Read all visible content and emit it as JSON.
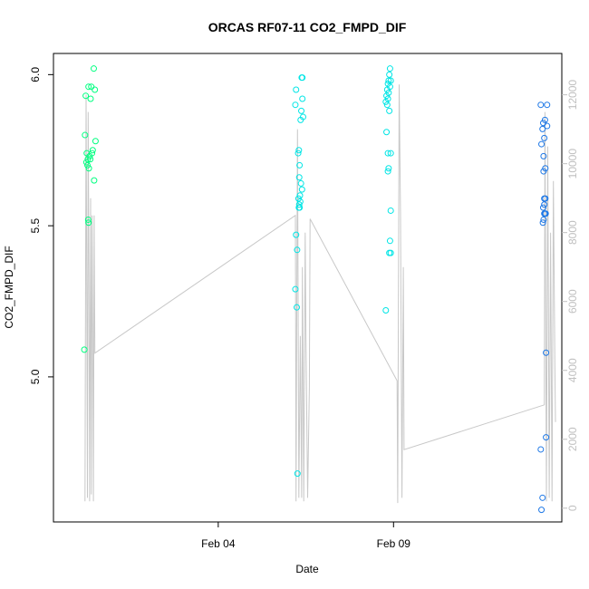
{
  "chart_data": {
    "type": "scatter",
    "title": "ORCAS RF07-11 CO2_FMPD_DIF",
    "xlabel": "Date",
    "ylabel": "CO2_FMPD_DIF",
    "x_ticks": [
      {
        "label": "Feb 04",
        "day": 4.0
      },
      {
        "label": "Feb 09",
        "day": 9.0
      }
    ],
    "xlim_days": [
      -0.7,
      13.8
    ],
    "ylim": [
      4.52,
      6.07
    ],
    "y_ticks": [
      5.0,
      5.5,
      6.0
    ],
    "y_tick_labels": [
      "5.0",
      "5.5",
      "6.0"
    ],
    "y2_ticks": [
      0,
      2000,
      4000,
      6000,
      8000,
      10000,
      12000
    ],
    "y2_tick_labels": [
      "0",
      "2000",
      "4000",
      "6000",
      "8000",
      "10000",
      "12000"
    ],
    "y2lim": [
      -400,
      13200
    ],
    "altitude_line_color": "#c8c8c8",
    "color_scale": [
      "#00ff80",
      "#00e5e5",
      "#1e78e6"
    ],
    "altitude_trace": [
      [
        0.2,
        200
      ],
      [
        0.23,
        12000
      ],
      [
        0.25,
        6000
      ],
      [
        0.27,
        300
      ],
      [
        0.29,
        11500
      ],
      [
        0.31,
        7000
      ],
      [
        0.33,
        200
      ],
      [
        0.36,
        9000
      ],
      [
        0.38,
        400
      ],
      [
        0.4,
        8500
      ],
      [
        0.42,
        5200
      ],
      [
        0.44,
        200
      ],
      [
        0.46,
        8500
      ],
      [
        0.48,
        4500
      ],
      [
        6.2,
        8500
      ],
      [
        6.22,
        200
      ],
      [
        6.26,
        11000
      ],
      [
        6.3,
        300
      ],
      [
        6.34,
        5000
      ],
      [
        6.38,
        300
      ],
      [
        6.4,
        7000
      ],
      [
        6.44,
        200
      ],
      [
        6.48,
        8000
      ],
      [
        6.5,
        5000
      ],
      [
        6.55,
        300
      ],
      [
        6.6,
        3500
      ],
      [
        6.62,
        8400
      ],
      [
        9.1,
        3700
      ],
      [
        9.12,
        150
      ],
      [
        9.16,
        12300
      ],
      [
        9.2,
        8500
      ],
      [
        9.24,
        300
      ],
      [
        9.28,
        7000
      ],
      [
        9.3,
        1700
      ],
      [
        13.3,
        3000
      ],
      [
        13.32,
        11500
      ],
      [
        13.36,
        200
      ],
      [
        13.4,
        10500
      ],
      [
        13.44,
        300
      ],
      [
        13.48,
        8000
      ],
      [
        13.52,
        200
      ],
      [
        13.56,
        9500
      ],
      [
        13.6,
        4200
      ],
      [
        13.62,
        2500
      ]
    ],
    "points": [
      {
        "day": 0.45,
        "v": 6.02,
        "c": 0
      },
      {
        "day": 0.3,
        "v": 5.96,
        "c": 0
      },
      {
        "day": 0.38,
        "v": 5.96,
        "c": 0
      },
      {
        "day": 0.48,
        "v": 5.95,
        "c": 0
      },
      {
        "day": 0.22,
        "v": 5.93,
        "c": 0
      },
      {
        "day": 0.36,
        "v": 5.92,
        "c": 0
      },
      {
        "day": 0.2,
        "v": 5.8,
        "c": 0
      },
      {
        "day": 0.5,
        "v": 5.78,
        "c": 0
      },
      {
        "day": 0.42,
        "v": 5.75,
        "c": 0
      },
      {
        "day": 0.4,
        "v": 5.74,
        "c": 0
      },
      {
        "day": 0.25,
        "v": 5.74,
        "c": 0
      },
      {
        "day": 0.33,
        "v": 5.73,
        "c": 0
      },
      {
        "day": 0.28,
        "v": 5.72,
        "c": 0
      },
      {
        "day": 0.35,
        "v": 5.72,
        "c": 0
      },
      {
        "day": 0.24,
        "v": 5.71,
        "c": 0
      },
      {
        "day": 0.27,
        "v": 5.7,
        "c": 0
      },
      {
        "day": 0.31,
        "v": 5.69,
        "c": 0
      },
      {
        "day": 0.46,
        "v": 5.65,
        "c": 0
      },
      {
        "day": 0.29,
        "v": 5.52,
        "c": 0
      },
      {
        "day": 0.3,
        "v": 5.51,
        "c": 0
      },
      {
        "day": 0.18,
        "v": 5.09,
        "c": 0
      },
      {
        "day": 6.38,
        "v": 5.99,
        "c": 1
      },
      {
        "day": 6.4,
        "v": 5.99,
        "c": 1
      },
      {
        "day": 6.22,
        "v": 5.95,
        "c": 1
      },
      {
        "day": 6.4,
        "v": 5.92,
        "c": 1
      },
      {
        "day": 6.2,
        "v": 5.9,
        "c": 1
      },
      {
        "day": 6.37,
        "v": 5.88,
        "c": 1
      },
      {
        "day": 6.42,
        "v": 5.86,
        "c": 1
      },
      {
        "day": 6.35,
        "v": 5.85,
        "c": 1
      },
      {
        "day": 6.3,
        "v": 5.75,
        "c": 1
      },
      {
        "day": 6.28,
        "v": 5.74,
        "c": 1
      },
      {
        "day": 6.32,
        "v": 5.7,
        "c": 1
      },
      {
        "day": 6.31,
        "v": 5.66,
        "c": 1
      },
      {
        "day": 6.36,
        "v": 5.64,
        "c": 1
      },
      {
        "day": 6.39,
        "v": 5.62,
        "c": 1
      },
      {
        "day": 6.33,
        "v": 5.6,
        "c": 1
      },
      {
        "day": 6.29,
        "v": 5.59,
        "c": 1
      },
      {
        "day": 6.34,
        "v": 5.58,
        "c": 1
      },
      {
        "day": 6.31,
        "v": 5.57,
        "c": 1
      },
      {
        "day": 6.3,
        "v": 5.56,
        "c": 1
      },
      {
        "day": 6.32,
        "v": 5.56,
        "c": 1
      },
      {
        "day": 6.22,
        "v": 5.47,
        "c": 1
      },
      {
        "day": 6.25,
        "v": 5.42,
        "c": 1
      },
      {
        "day": 6.2,
        "v": 5.29,
        "c": 1
      },
      {
        "day": 6.24,
        "v": 5.23,
        "c": 1
      },
      {
        "day": 6.26,
        "v": 4.68,
        "c": 1
      },
      {
        "day": 8.9,
        "v": 6.02,
        "c": 1
      },
      {
        "day": 8.88,
        "v": 6.0,
        "c": 1
      },
      {
        "day": 8.86,
        "v": 5.98,
        "c": 1
      },
      {
        "day": 8.92,
        "v": 5.98,
        "c": 1
      },
      {
        "day": 8.84,
        "v": 5.97,
        "c": 1
      },
      {
        "day": 8.9,
        "v": 5.96,
        "c": 1
      },
      {
        "day": 8.82,
        "v": 5.95,
        "c": 1
      },
      {
        "day": 8.86,
        "v": 5.94,
        "c": 1
      },
      {
        "day": 8.8,
        "v": 5.93,
        "c": 1
      },
      {
        "day": 8.84,
        "v": 5.92,
        "c": 1
      },
      {
        "day": 8.78,
        "v": 5.91,
        "c": 1
      },
      {
        "day": 8.82,
        "v": 5.9,
        "c": 1
      },
      {
        "day": 8.88,
        "v": 5.88,
        "c": 1
      },
      {
        "day": 8.8,
        "v": 5.81,
        "c": 1
      },
      {
        "day": 8.84,
        "v": 5.74,
        "c": 1
      },
      {
        "day": 8.92,
        "v": 5.74,
        "c": 1
      },
      {
        "day": 8.86,
        "v": 5.69,
        "c": 1
      },
      {
        "day": 8.84,
        "v": 5.68,
        "c": 1
      },
      {
        "day": 8.92,
        "v": 5.55,
        "c": 1
      },
      {
        "day": 8.9,
        "v": 5.45,
        "c": 1
      },
      {
        "day": 8.88,
        "v": 5.41,
        "c": 1
      },
      {
        "day": 8.92,
        "v": 5.41,
        "c": 1
      },
      {
        "day": 8.78,
        "v": 5.22,
        "c": 1
      },
      {
        "day": 13.2,
        "v": 5.9,
        "c": 2
      },
      {
        "day": 13.38,
        "v": 5.9,
        "c": 2
      },
      {
        "day": 13.32,
        "v": 5.85,
        "c": 2
      },
      {
        "day": 13.27,
        "v": 5.84,
        "c": 2
      },
      {
        "day": 13.38,
        "v": 5.83,
        "c": 2
      },
      {
        "day": 13.25,
        "v": 5.82,
        "c": 2
      },
      {
        "day": 13.3,
        "v": 5.79,
        "c": 2
      },
      {
        "day": 13.22,
        "v": 5.77,
        "c": 2
      },
      {
        "day": 13.28,
        "v": 5.73,
        "c": 2
      },
      {
        "day": 13.33,
        "v": 5.69,
        "c": 2
      },
      {
        "day": 13.28,
        "v": 5.68,
        "c": 2
      },
      {
        "day": 13.3,
        "v": 5.59,
        "c": 2
      },
      {
        "day": 13.33,
        "v": 5.59,
        "c": 2
      },
      {
        "day": 13.3,
        "v": 5.57,
        "c": 2
      },
      {
        "day": 13.27,
        "v": 5.56,
        "c": 2
      },
      {
        "day": 13.32,
        "v": 5.54,
        "c": 2
      },
      {
        "day": 13.3,
        "v": 5.54,
        "c": 2
      },
      {
        "day": 13.34,
        "v": 5.54,
        "c": 2
      },
      {
        "day": 13.28,
        "v": 5.52,
        "c": 2
      },
      {
        "day": 13.26,
        "v": 5.51,
        "c": 2
      },
      {
        "day": 13.35,
        "v": 5.08,
        "c": 2
      },
      {
        "day": 13.35,
        "v": 4.8,
        "c": 2
      },
      {
        "day": 13.2,
        "v": 4.76,
        "c": 2
      },
      {
        "day": 13.25,
        "v": 4.6,
        "c": 2
      },
      {
        "day": 13.22,
        "v": 4.56,
        "c": 2
      }
    ]
  }
}
